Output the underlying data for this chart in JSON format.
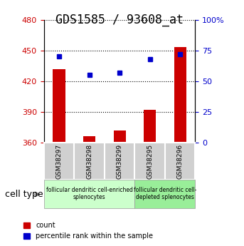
{
  "title": "GDS1585 / 93608_at",
  "samples": [
    "GSM38297",
    "GSM38298",
    "GSM38299",
    "GSM38295",
    "GSM38296"
  ],
  "counts": [
    432,
    366,
    372,
    392,
    453
  ],
  "percentile_ranks": [
    70,
    55,
    57,
    68,
    72
  ],
  "y_min": 360,
  "y_max": 480,
  "y_ticks": [
    360,
    390,
    420,
    450,
    480
  ],
  "y2_ticks": [
    0,
    25,
    50,
    75,
    100
  ],
  "bar_color": "#cc0000",
  "dot_color": "#0000cc",
  "bar_width": 0.4,
  "groups": [
    {
      "label": "follicular dendritic cell-enriched\nsplenocytes",
      "samples": [
        "GSM38297",
        "GSM38298",
        "GSM38299"
      ],
      "color": "#ccffcc"
    },
    {
      "label": "follicular dendritic cell-\ndepleted splenocytes",
      "samples": [
        "GSM38295",
        "GSM38296"
      ],
      "color": "#99ee99"
    }
  ],
  "cell_type_label": "cell type",
  "legend_count_label": "count",
  "legend_percentile_label": "percentile rank within the sample",
  "title_fontsize": 12,
  "axis_label_fontsize": 9,
  "tick_fontsize": 8,
  "background_color": "#ffffff"
}
